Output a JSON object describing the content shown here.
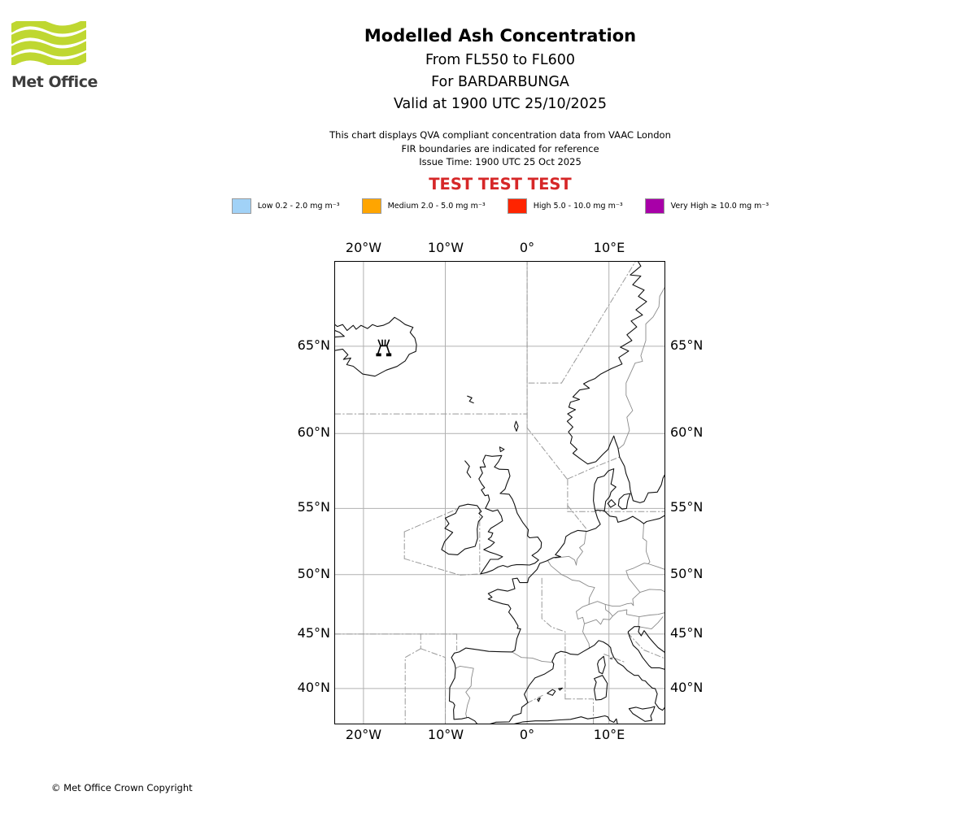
{
  "logo": {
    "text": "Met Office",
    "wave_color": "#BFD731"
  },
  "header": {
    "title": "Modelled Ash Concentration",
    "subtitle_levels": "From FL550 to FL600",
    "subtitle_volcano": "For BARDARBUNGA",
    "subtitle_valid": "Valid at 1900 UTC 25/10/2025"
  },
  "info": {
    "line1": "This chart displays QVA compliant concentration data from VAAC London",
    "line2": "FIR boundaries are indicated for reference",
    "line3": "Issue Time: 1900 UTC 25 Oct 2025"
  },
  "test_banner": "TEST TEST TEST",
  "legend": {
    "items": [
      {
        "label": "Low 0.2 - 2.0 mg m⁻³",
        "color": "#A1D2F7"
      },
      {
        "label": "Medium 2.0 - 5.0 mg m⁻³",
        "color": "#FFA500"
      },
      {
        "label": "High 5.0 - 10.0 mg m⁻³",
        "color": "#FF2400"
      },
      {
        "label": "Very High ≥ 10.0 mg m⁻³",
        "color": "#A800A8"
      }
    ]
  },
  "map": {
    "x_ticks": [
      "20°W",
      "10°W",
      "0°",
      "10°E"
    ],
    "y_ticks": [
      "65°N",
      "60°N",
      "55°N",
      "50°N",
      "45°N",
      "40°N"
    ],
    "volcano_marker": "BARDARBUNGA",
    "grid_color": "#b0b0b0",
    "fir_color": "#999999",
    "border_color": "#8a8a8a",
    "coast_color": "#111111"
  },
  "footer": {
    "copyright": "© Met Office Crown Copyright"
  }
}
